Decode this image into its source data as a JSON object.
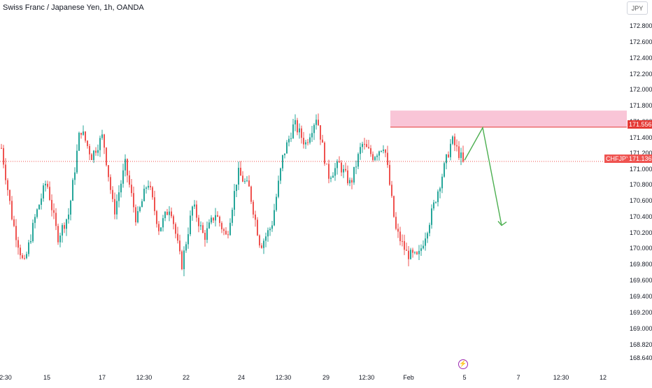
{
  "header": {
    "title": "Swiss Franc / Japanese Yen, 1h, OANDA",
    "currency_button": "JPY"
  },
  "price_axis": {
    "ticks": [
      "172.800",
      "172.600",
      "172.400",
      "172.200",
      "172.000",
      "171.800",
      "171.600",
      "171.400",
      "171.200",
      "171.000",
      "170.800",
      "170.600",
      "170.400",
      "170.200",
      "170.000",
      "169.800",
      "169.600",
      "169.400",
      "169.200",
      "169.000",
      "168.820",
      "168.640"
    ]
  },
  "time_axis": {
    "ticks": [
      "2:30",
      "15",
      "17",
      "12:30",
      "22",
      "24",
      "12:30",
      "29",
      "12:30",
      "Feb",
      "5",
      "7",
      "12:30",
      "12"
    ]
  },
  "labels": {
    "zone_price": "171.556",
    "symbol": "CHFJPY",
    "last_price": "171.136"
  },
  "colors": {
    "up": "#26a69a",
    "down": "#ef5350",
    "zone_fill": "#f8bbd0",
    "zone_border": "#e53935",
    "arrow": "#4caf50",
    "price_line": "#ef5350"
  },
  "chart_data": {
    "type": "candlestick",
    "title": "Swiss Franc / Japanese Yen, 1h, OANDA",
    "symbol": "CHFJPY",
    "xlabel": "",
    "ylabel": "",
    "ylim": [
      168.6,
      172.9
    ],
    "last_price": 171.136,
    "resistance_zone": [
      171.556,
      171.76
    ],
    "forecast_path": [
      {
        "x": "Feb 5",
        "y": 171.15
      },
      {
        "x": "Feb 6",
        "y": 171.55
      },
      {
        "x": "Feb 7",
        "y": 170.35
      }
    ],
    "close_path": [
      {
        "x": "Jan 13 12:30",
        "y": 171.3
      },
      {
        "x": "Jan 14",
        "y": 170.4
      },
      {
        "x": "Jan 14 12:00",
        "y": 169.85
      },
      {
        "x": "Jan 15",
        "y": 170.45
      },
      {
        "x": "Jan 15 12:00",
        "y": 170.9
      },
      {
        "x": "Jan 16",
        "y": 170.2
      },
      {
        "x": "Jan 16 12:00",
        "y": 170.5
      },
      {
        "x": "Jan 17",
        "y": 171.55
      },
      {
        "x": "Jan 17 12:00",
        "y": 171.2
      },
      {
        "x": "Jan 18",
        "y": 171.45
      },
      {
        "x": "Jan 19",
        "y": 170.5
      },
      {
        "x": "Jan 20",
        "y": 171.1
      },
      {
        "x": "Jan 21",
        "y": 170.4
      },
      {
        "x": "Jan 22",
        "y": 170.9
      },
      {
        "x": "Jan 22 12:00",
        "y": 170.3
      },
      {
        "x": "Jan 23",
        "y": 170.6
      },
      {
        "x": "Jan 23 12:00",
        "y": 169.85
      },
      {
        "x": "Jan 24",
        "y": 170.6
      },
      {
        "x": "Jan 24 12:00",
        "y": 170.2
      },
      {
        "x": "Jan 25",
        "y": 170.5
      },
      {
        "x": "Jan 25 12:00",
        "y": 170.2
      },
      {
        "x": "Jan 26",
        "y": 171.0
      },
      {
        "x": "Jan 27",
        "y": 170.8
      },
      {
        "x": "Jan 27 12:00",
        "y": 170.1
      },
      {
        "x": "Jan 28",
        "y": 170.35
      },
      {
        "x": "Jan 28 12:00",
        "y": 171.2
      },
      {
        "x": "Jan 29",
        "y": 171.6
      },
      {
        "x": "Jan 29 12:00",
        "y": 171.35
      },
      {
        "x": "Jan 30",
        "y": 171.7
      },
      {
        "x": "Jan 30 12:00",
        "y": 170.95
      },
      {
        "x": "Jan 31",
        "y": 171.1
      },
      {
        "x": "Jan 31 12:00",
        "y": 170.85
      },
      {
        "x": "Feb 1",
        "y": 171.35
      },
      {
        "x": "Feb 1 12:00",
        "y": 171.2
      },
      {
        "x": "Feb 2",
        "y": 171.35
      },
      {
        "x": "Feb 2 06:00",
        "y": 170.3
      },
      {
        "x": "Feb 2 12:00",
        "y": 170.0
      },
      {
        "x": "Feb 3",
        "y": 169.95
      },
      {
        "x": "Feb 3 12:00",
        "y": 170.4
      },
      {
        "x": "Feb 4",
        "y": 170.9
      },
      {
        "x": "Feb 4 12:00",
        "y": 171.4
      },
      {
        "x": "Feb 5",
        "y": 171.136
      }
    ]
  }
}
